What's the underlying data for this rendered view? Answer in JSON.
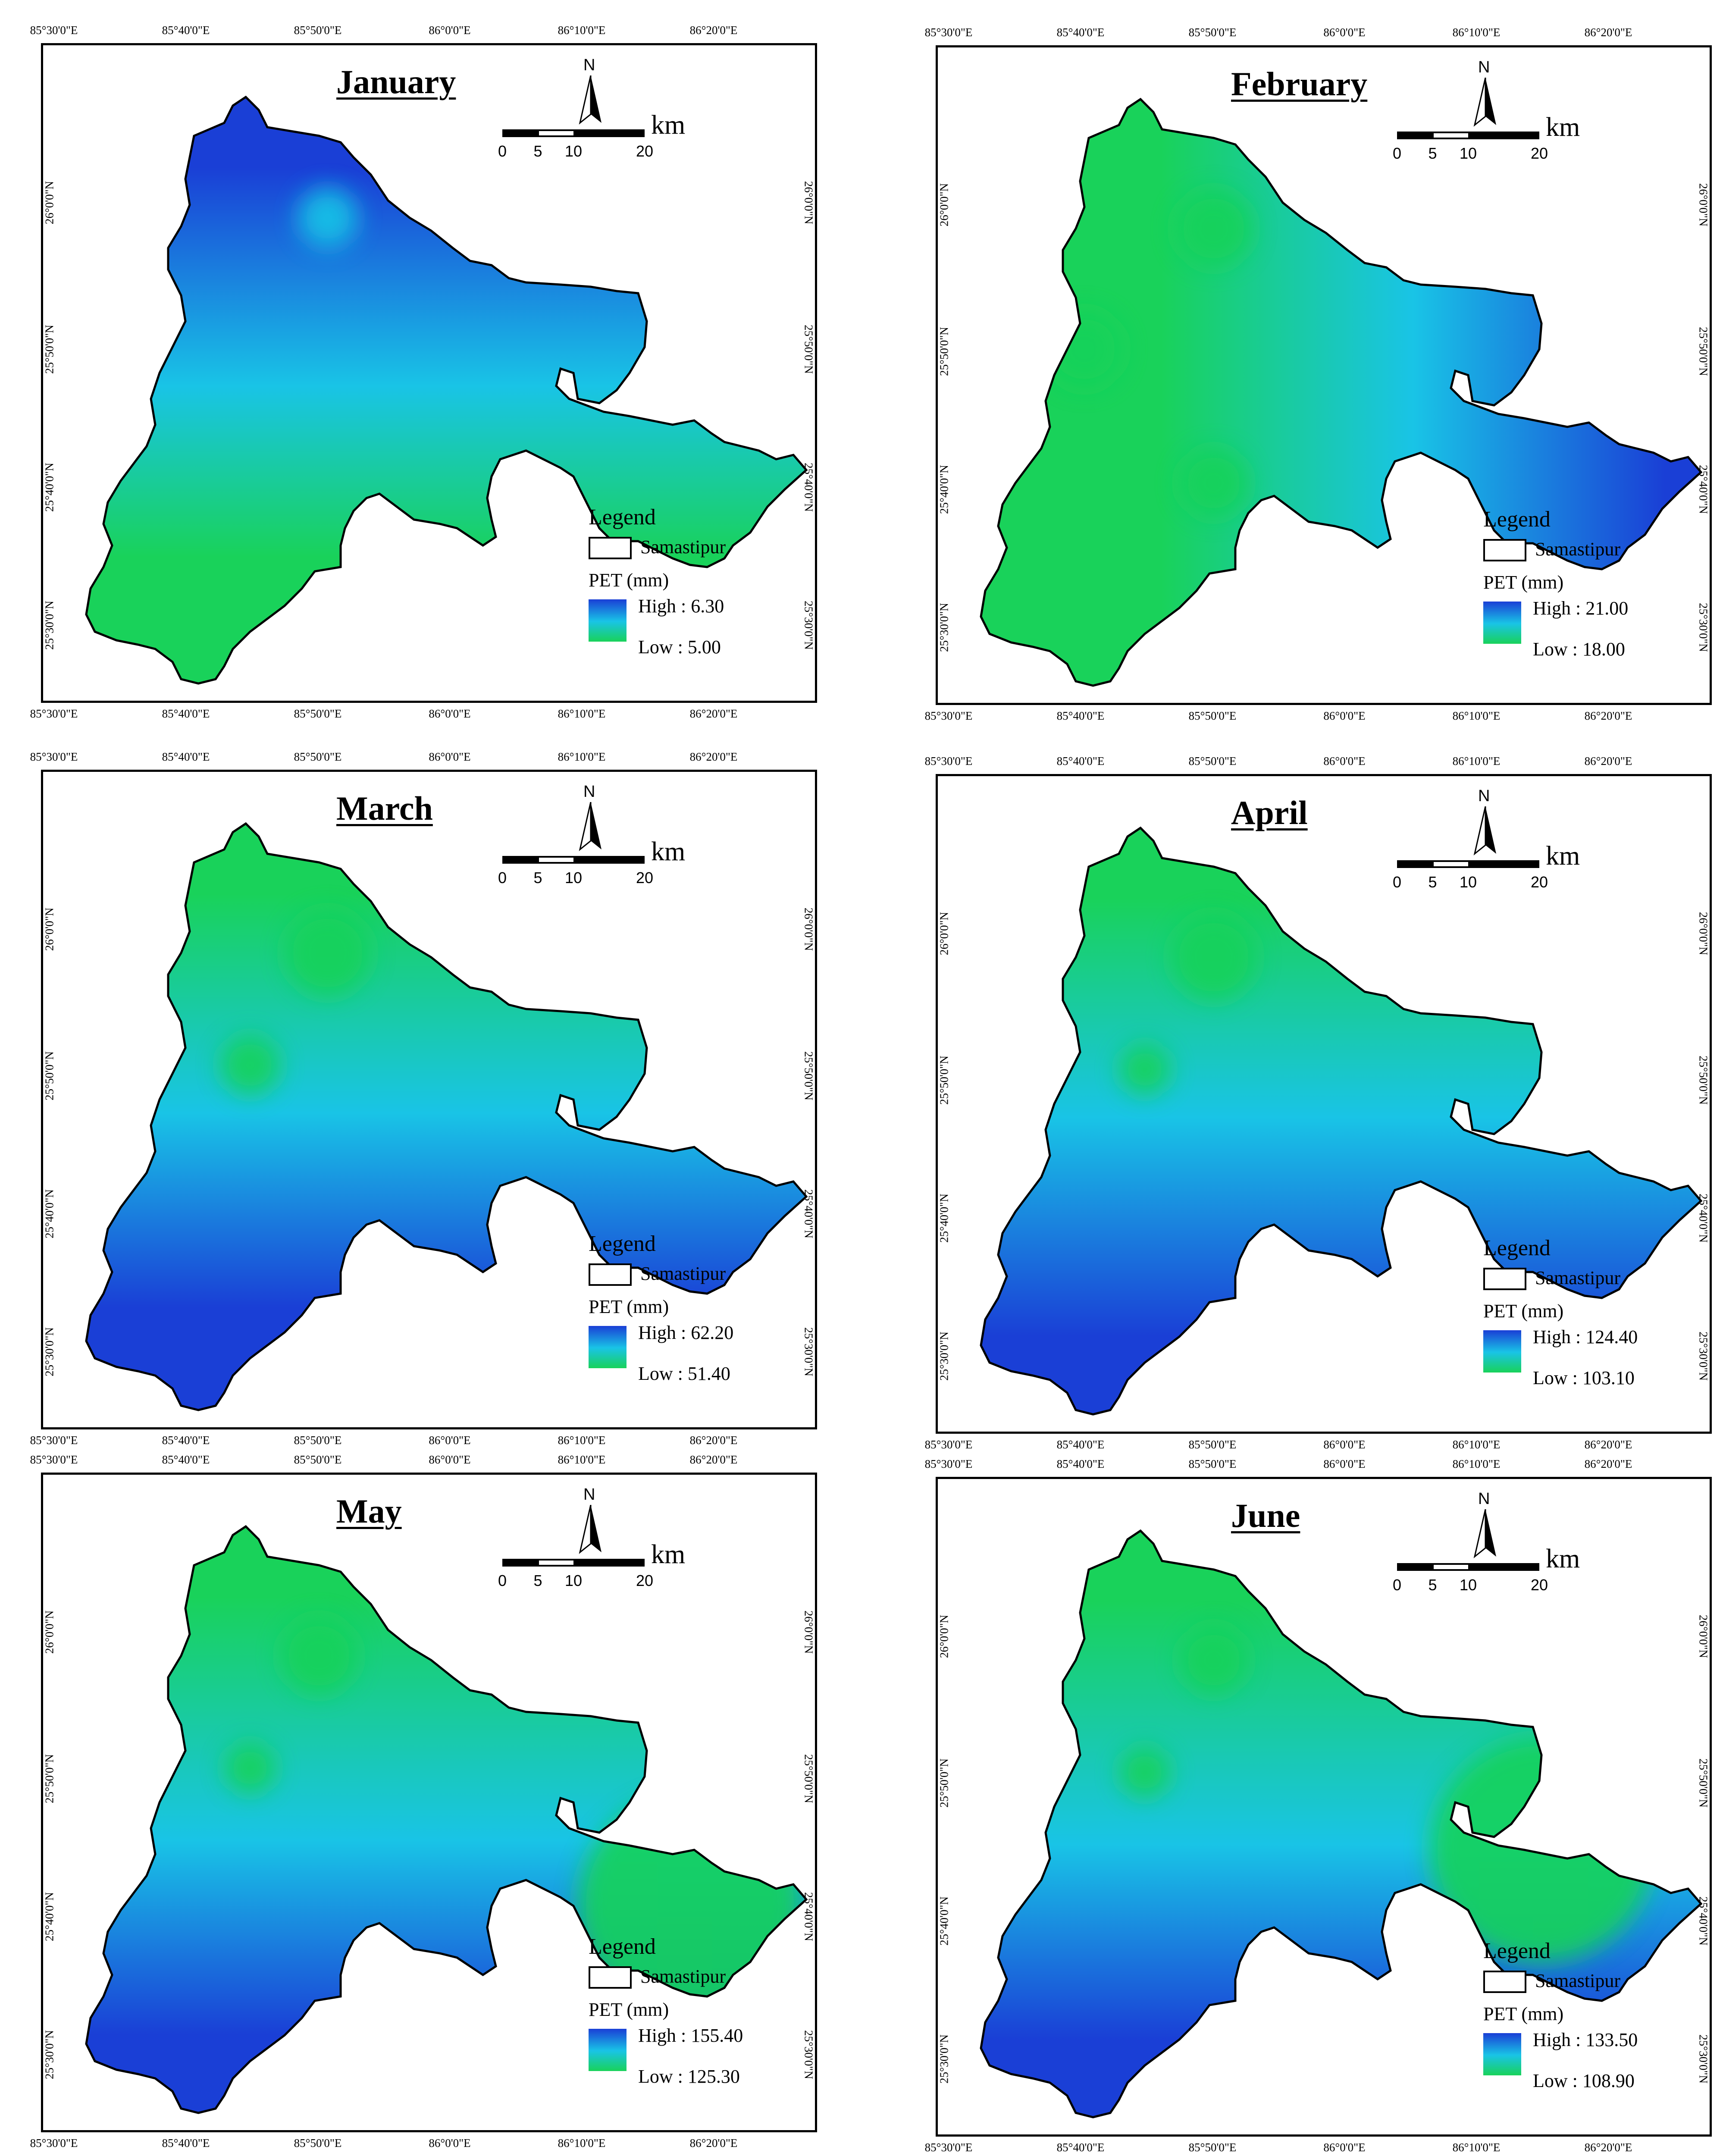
{
  "tick_labels": {
    "lon": [
      "85°30'0\"E",
      "85°40'0\"E",
      "85°50'0\"E",
      "86°0'0\"E",
      "86°10'0\"E",
      "86°20'0\"E"
    ],
    "lat": [
      "26°0'0\"N",
      "25°50'0\"N",
      "25°40'0\"N",
      "25°30'0\"N"
    ]
  },
  "north_label": "N",
  "scale": {
    "ticks": [
      "0",
      "5",
      "10",
      "20"
    ],
    "unit": "km"
  },
  "legend": {
    "title": "Legend",
    "boundary_label": "Samastipur",
    "variable_label": "PET (mm)"
  },
  "colors": {
    "high": "#1a3fd6",
    "mid": "#19c4e6",
    "low": "#19d25a"
  },
  "panels": [
    {
      "month": "January",
      "high": "High : 6.30",
      "low": "Low : 5.00"
    },
    {
      "month": "February",
      "high": "High : 21.00",
      "low": "Low : 18.00"
    },
    {
      "month": "March",
      "high": "High : 62.20",
      "low": "Low : 51.40"
    },
    {
      "month": "April",
      "high": "High : 124.40",
      "low": "Low : 103.10"
    },
    {
      "month": "May",
      "high": "High : 155.40",
      "low": "Low : 125.30"
    },
    {
      "month": "June",
      "high": "High : 133.50",
      "low": "Low : 108.90"
    }
  ]
}
